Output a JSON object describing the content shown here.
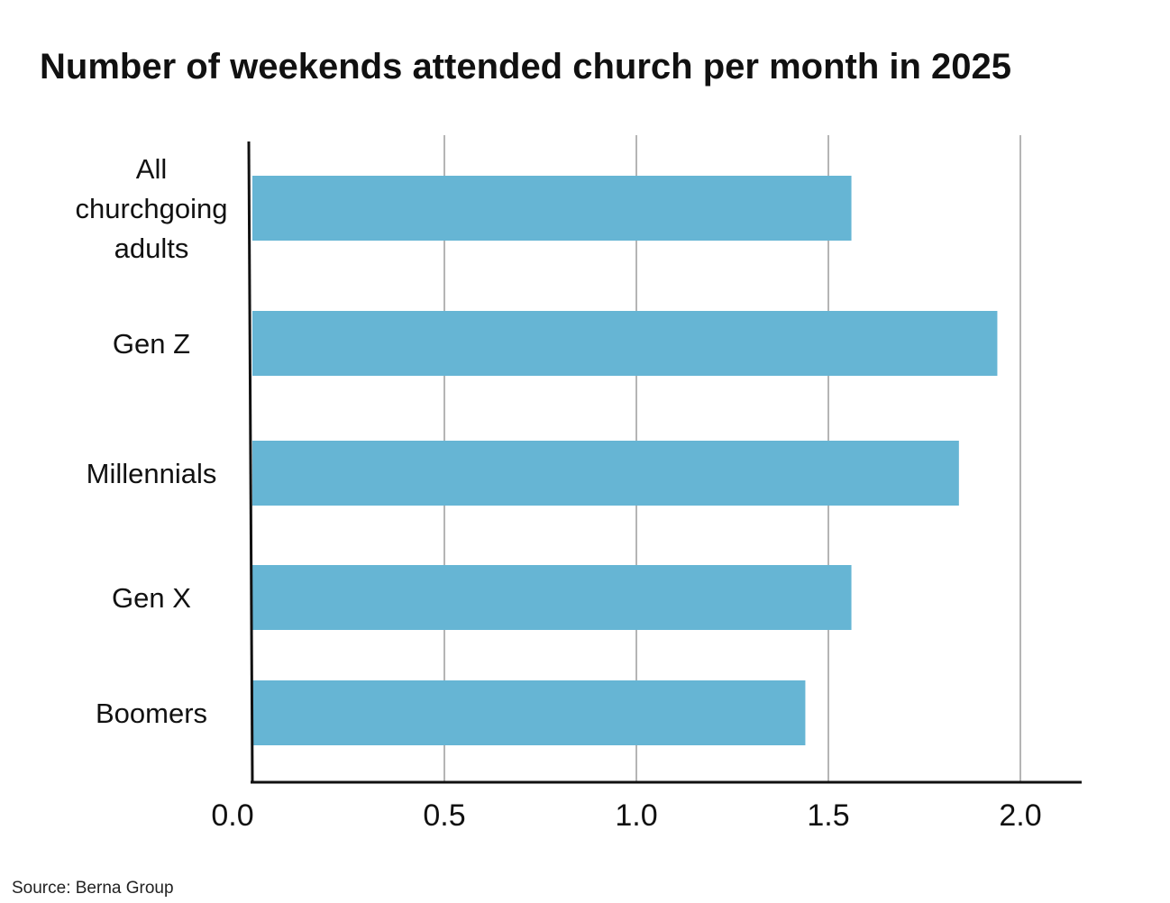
{
  "title": "Number of weekends attended church per month in 2025",
  "source": "Source: Berna Group",
  "colors": {
    "bar": "#66b5d4",
    "grid": "#b5b5b5",
    "axis": "#111111"
  },
  "chart_data": {
    "type": "bar",
    "orientation": "horizontal",
    "title": "Number of weekends attended church per month in 2025",
    "categories": [
      [
        "All",
        "churchgoing",
        "adults"
      ],
      [
        "Gen Z"
      ],
      [
        "Millennials"
      ],
      [
        "Gen X"
      ],
      [
        "Boomers"
      ]
    ],
    "values": [
      1.56,
      1.94,
      1.84,
      1.56,
      1.44
    ],
    "xlim": [
      0,
      2.2
    ],
    "xticks": [
      "0.0",
      "0.5",
      "1.0",
      "1.5",
      "2.0"
    ],
    "grid": "vertical",
    "xlabel": "",
    "ylabel": ""
  }
}
